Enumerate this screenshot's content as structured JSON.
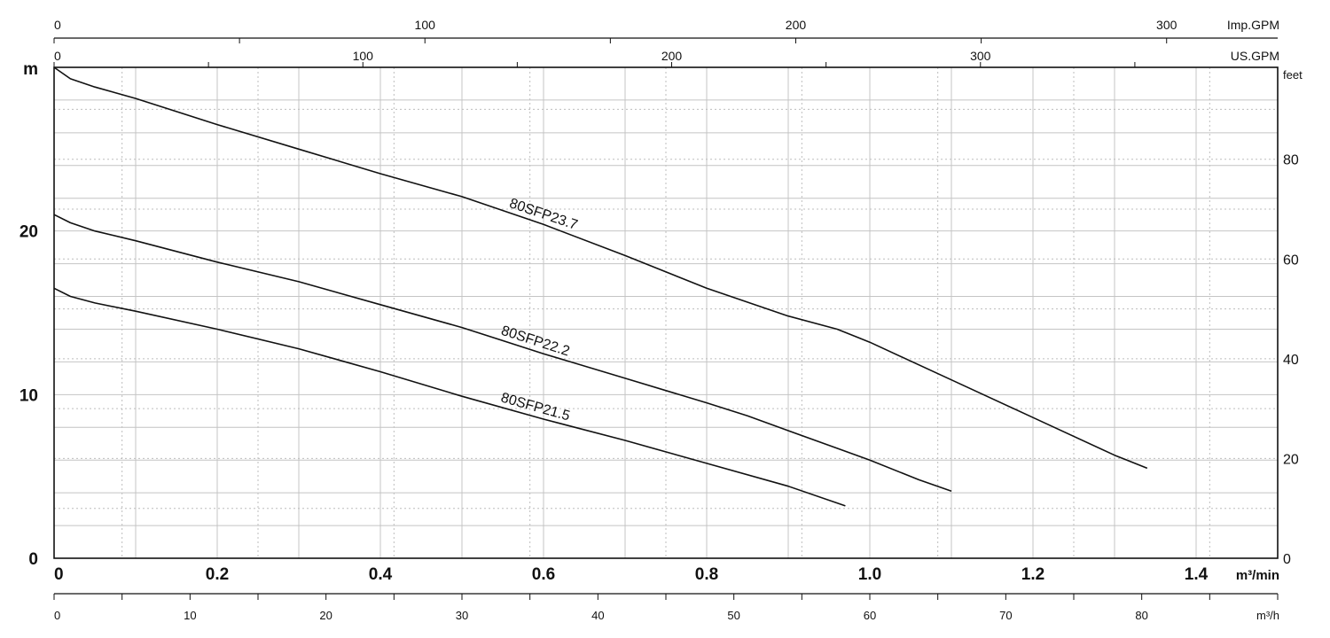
{
  "chart_data": {
    "type": "line",
    "title": "",
    "xlabel": "m³/min",
    "ylabel": "m",
    "xlim": [
      0,
      1.5
    ],
    "ylim": [
      0,
      30
    ],
    "x_ticks": [
      {
        "v": 0,
        "label": "0"
      },
      {
        "v": 0.2,
        "label": "0.2"
      },
      {
        "v": 0.4,
        "label": "0.4"
      },
      {
        "v": 0.6,
        "label": "0.6"
      },
      {
        "v": 0.8,
        "label": "0.8"
      },
      {
        "v": 1.0,
        "label": "1.0"
      },
      {
        "v": 1.2,
        "label": "1.2"
      },
      {
        "v": 1.4,
        "label": "1.4"
      }
    ],
    "y_ticks": [
      {
        "v": 0,
        "label": "0"
      },
      {
        "v": 10,
        "label": "10"
      },
      {
        "v": 20,
        "label": "20"
      }
    ],
    "secondary_axes": {
      "imp_gpm": {
        "unit": "Imp.GPM",
        "ticks": [
          "0",
          "100",
          "200",
          "300"
        ],
        "tick_values": [
          0,
          100,
          200,
          300
        ]
      },
      "us_gpm": {
        "unit": "US.GPM",
        "ticks": [
          "0",
          "100",
          "200",
          "300"
        ],
        "tick_values": [
          0,
          100,
          200,
          300
        ]
      },
      "m3h": {
        "unit": "m³/h",
        "ticks": [
          "0",
          "10",
          "20",
          "30",
          "40",
          "50",
          "60",
          "70",
          "80"
        ],
        "tick_values": [
          0,
          10,
          20,
          30,
          40,
          50,
          60,
          70,
          80
        ]
      },
      "feet": {
        "unit": "feet",
        "ticks": [
          "0",
          "20",
          "40",
          "60",
          "80"
        ],
        "tick_values": [
          0,
          20,
          40,
          60,
          80
        ]
      }
    },
    "grid": true,
    "series": [
      {
        "name": "80SFP23.7",
        "color": "#111111",
        "x": [
          0,
          0.02,
          0.05,
          0.1,
          0.2,
          0.3,
          0.4,
          0.5,
          0.6,
          0.7,
          0.8,
          0.9,
          0.96,
          1.0,
          1.1,
          1.2,
          1.3,
          1.34
        ],
        "y": [
          30,
          29.3,
          28.8,
          28.1,
          26.5,
          25.0,
          23.5,
          22.1,
          20.4,
          18.5,
          16.5,
          14.8,
          14.0,
          13.2,
          10.9,
          8.6,
          6.3,
          5.5
        ]
      },
      {
        "name": "80SFP22.2",
        "color": "#111111",
        "x": [
          0,
          0.02,
          0.05,
          0.1,
          0.2,
          0.3,
          0.4,
          0.5,
          0.6,
          0.7,
          0.8,
          0.85,
          0.9,
          1.0,
          1.06,
          1.1
        ],
        "y": [
          21.0,
          20.5,
          20.0,
          19.4,
          18.1,
          16.9,
          15.5,
          14.1,
          12.5,
          11.0,
          9.5,
          8.7,
          7.8,
          6.0,
          4.8,
          4.1
        ]
      },
      {
        "name": "80SFP21.5",
        "color": "#111111",
        "x": [
          0,
          0.02,
          0.05,
          0.1,
          0.2,
          0.3,
          0.4,
          0.5,
          0.6,
          0.7,
          0.8,
          0.9,
          0.97
        ],
        "y": [
          16.5,
          16.0,
          15.6,
          15.1,
          14.0,
          12.8,
          11.4,
          9.9,
          8.5,
          7.2,
          5.8,
          4.4,
          3.2
        ]
      }
    ],
    "annotations": [
      {
        "text": "80SFP23.7",
        "series": 0
      },
      {
        "text": "80SFP22.2",
        "series": 1
      },
      {
        "text": "80SFP21.5",
        "series": 2
      }
    ]
  }
}
